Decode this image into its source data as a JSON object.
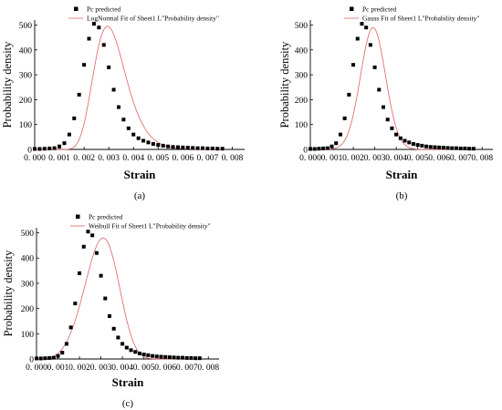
{
  "chart_data": [
    {
      "type": "scatter",
      "panel_label": "(a)",
      "xlabel": "Strain",
      "ylabel": "Probability density",
      "xlim": [
        0,
        0.0085
      ],
      "ylim": [
        0,
        520
      ],
      "x_ticks": [
        "0. 000",
        "0. 001",
        "0. 002",
        "0. 003",
        "0. 004",
        "0. 005",
        "0. 006",
        "0. 007",
        "0. 008"
      ],
      "y_ticks": [
        "0",
        "100",
        "200",
        "300",
        "400",
        "500"
      ],
      "legend": {
        "placement": "top",
        "scatter_label": "Pc predicted",
        "fit_label": "LogNormal Fit of Sheet1 L\"Probability density\""
      },
      "fit": {
        "type": "lognormal",
        "peak_x": 0.00295,
        "peak_y": 495,
        "line_color": "#e06060"
      },
      "series": [
        {
          "name": "Pc predicted",
          "marker_color": "#000000",
          "x": [
            0.0,
            0.0002,
            0.0004,
            0.0006,
            0.0008,
            0.001,
            0.0012,
            0.0014,
            0.0016,
            0.0018,
            0.002,
            0.0022,
            0.0024,
            0.0026,
            0.0028,
            0.003,
            0.0032,
            0.0034,
            0.0036,
            0.0038,
            0.004,
            0.0042,
            0.0044,
            0.0046,
            0.0048,
            0.005,
            0.0052,
            0.0054,
            0.0056,
            0.0058,
            0.006,
            0.0062,
            0.0064,
            0.0066,
            0.0068,
            0.007,
            0.0072,
            0.0074,
            0.0076
          ],
          "y": [
            2,
            2,
            3,
            4,
            5,
            12,
            25,
            60,
            125,
            220,
            340,
            445,
            505,
            490,
            420,
            330,
            240,
            170,
            120,
            85,
            60,
            45,
            35,
            28,
            22,
            18,
            15,
            12,
            10,
            9,
            8,
            7,
            6,
            5,
            5,
            4,
            4,
            3,
            3
          ]
        }
      ]
    },
    {
      "type": "scatter",
      "panel_label": "(b)",
      "xlabel": "Strain",
      "ylabel": "Probability density",
      "xlim": [
        0,
        0.0085
      ],
      "ylim": [
        0,
        520
      ],
      "x_ticks": [
        "0. 000",
        "0. 001",
        "0. 002",
        "0. 003",
        "0. 004",
        "0. 005",
        "0. 006",
        "0. 007",
        "0. 008"
      ],
      "y_ticks": [
        "0",
        "100",
        "200",
        "300",
        "400",
        "500"
      ],
      "legend": {
        "placement": "top",
        "scatter_label": "Pc predicted",
        "fit_label": "Gauss Fit of Sheet1 L\"Probability density\""
      },
      "fit": {
        "type": "gauss",
        "peak_x": 0.00292,
        "peak_y": 490,
        "line_color": "#e06060"
      },
      "series": [
        {
          "name": "Pc predicted",
          "marker_color": "#000000",
          "x": [
            0.0,
            0.0002,
            0.0004,
            0.0006,
            0.0008,
            0.001,
            0.0012,
            0.0014,
            0.0016,
            0.0018,
            0.002,
            0.0022,
            0.0024,
            0.0026,
            0.0028,
            0.003,
            0.0032,
            0.0034,
            0.0036,
            0.0038,
            0.004,
            0.0042,
            0.0044,
            0.0046,
            0.0048,
            0.005,
            0.0052,
            0.0054,
            0.0056,
            0.0058,
            0.006,
            0.0062,
            0.0064,
            0.0066,
            0.0068,
            0.007,
            0.0072,
            0.0074,
            0.0076
          ],
          "y": [
            2,
            2,
            3,
            4,
            5,
            12,
            25,
            60,
            125,
            220,
            340,
            445,
            505,
            490,
            420,
            330,
            240,
            170,
            120,
            85,
            60,
            45,
            35,
            28,
            22,
            18,
            15,
            12,
            10,
            9,
            8,
            7,
            6,
            5,
            5,
            4,
            4,
            3,
            3
          ]
        }
      ]
    },
    {
      "type": "scatter",
      "panel_label": "(c)",
      "xlabel": "Strain",
      "ylabel": "Probability density",
      "xlim": [
        0,
        0.0085
      ],
      "ylim": [
        0,
        520
      ],
      "x_ticks": [
        "0. 000",
        "0. 001",
        "0. 002",
        "0. 003",
        "0. 004",
        "0. 005",
        "0. 006",
        "0. 007",
        "0. 008"
      ],
      "y_ticks": [
        "0",
        "100",
        "200",
        "300",
        "400",
        "500"
      ],
      "legend": {
        "placement": "top",
        "scatter_label": "Pc predicted",
        "fit_label": "Weibull Fit of Sheet1 L\"Probability density\""
      },
      "fit": {
        "type": "weibull",
        "peak_x": 0.0031,
        "peak_y": 480,
        "line_color": "#e06060"
      },
      "series": [
        {
          "name": "Pc predicted",
          "marker_color": "#000000",
          "x": [
            0.0,
            0.0002,
            0.0004,
            0.0006,
            0.0008,
            0.001,
            0.0012,
            0.0014,
            0.0016,
            0.0018,
            0.002,
            0.0022,
            0.0024,
            0.0026,
            0.0028,
            0.003,
            0.0032,
            0.0034,
            0.0036,
            0.0038,
            0.004,
            0.0042,
            0.0044,
            0.0046,
            0.0048,
            0.005,
            0.0052,
            0.0054,
            0.0056,
            0.0058,
            0.006,
            0.0062,
            0.0064,
            0.0066,
            0.0068,
            0.007,
            0.0072,
            0.0074,
            0.0076
          ],
          "y": [
            2,
            2,
            3,
            4,
            5,
            12,
            25,
            60,
            125,
            220,
            340,
            445,
            505,
            490,
            420,
            330,
            240,
            170,
            120,
            85,
            60,
            45,
            35,
            28,
            22,
            18,
            15,
            12,
            10,
            9,
            8,
            7,
            6,
            5,
            5,
            4,
            4,
            3,
            3
          ]
        }
      ]
    }
  ]
}
